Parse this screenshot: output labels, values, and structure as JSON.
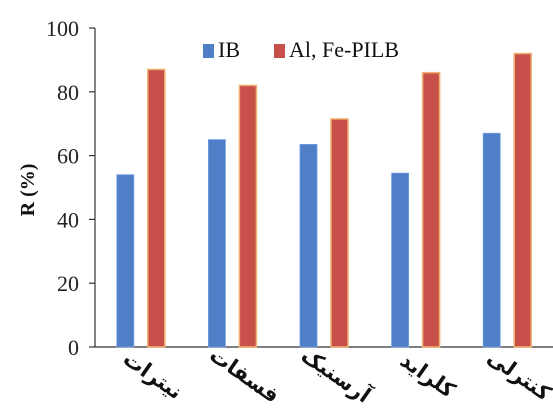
{
  "chart_data": {
    "type": "bar",
    "categories": [
      "نیترات",
      "فسفات",
      "آرسنیک",
      "کلراید",
      "کنترلی"
    ],
    "series": [
      {
        "name": "IB",
        "values": [
          54,
          65,
          63.5,
          54.5,
          67
        ],
        "color": "#4f7fc6"
      },
      {
        "name": "Al, Fe-PILB",
        "values": [
          87,
          82,
          71.5,
          86,
          92
        ],
        "color": "#c8504b",
        "edge": "#f0b070"
      }
    ],
    "ylabel": "R (%)",
    "ylim": [
      0,
      100
    ],
    "yticks": [
      "0",
      "20",
      "40",
      "60",
      "80",
      "100"
    ],
    "legend_position": "top",
    "grid": false
  }
}
